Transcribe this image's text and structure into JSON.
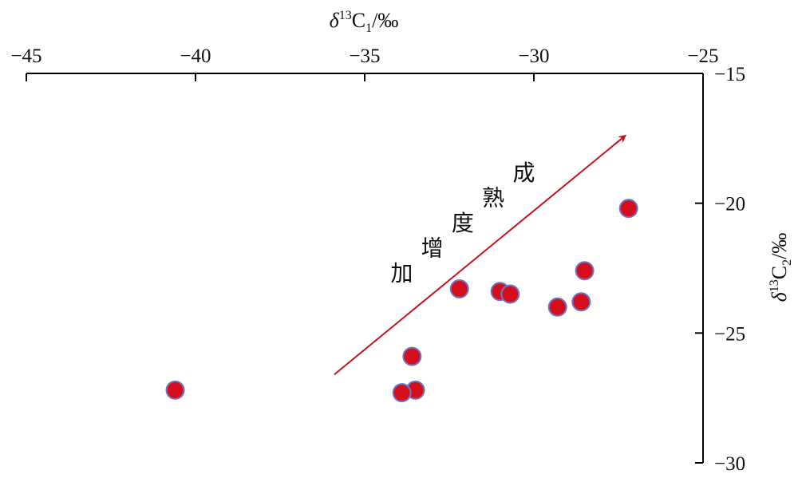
{
  "chart_data": {
    "type": "scatter",
    "x_axis": {
      "label_prefix": "δ",
      "label_sup": "13",
      "label_main": "C",
      "label_sub": "1",
      "label_suffix": "/‰",
      "position": "top",
      "range": [
        -45,
        -25
      ],
      "ticks": [
        -45,
        -40,
        -35,
        -30,
        -25
      ],
      "tick_labels": [
        "−45",
        "−40",
        "−35",
        "−30",
        "−25"
      ]
    },
    "y_axis": {
      "label_prefix": "δ",
      "label_sup": "13",
      "label_main": "C",
      "label_sub": "2",
      "label_suffix": "/‰",
      "position": "right",
      "range": [
        -30,
        -15
      ],
      "ticks": [
        -15,
        -20,
        -25,
        -30
      ],
      "tick_labels": [
        "−15",
        "−20",
        "−25",
        "−30"
      ]
    },
    "points": [
      {
        "x": -40.6,
        "y": -27.2
      },
      {
        "x": -33.6,
        "y": -25.9
      },
      {
        "x": -33.5,
        "y": -27.2
      },
      {
        "x": -33.9,
        "y": -27.3
      },
      {
        "x": -32.2,
        "y": -23.3
      },
      {
        "x": -31.0,
        "y": -23.4
      },
      {
        "x": -30.7,
        "y": -23.5
      },
      {
        "x": -29.3,
        "y": -24.0
      },
      {
        "x": -28.6,
        "y": -23.8
      },
      {
        "x": -28.5,
        "y": -22.6
      },
      {
        "x": -27.2,
        "y": -20.2
      }
    ],
    "marker_color": "#d40e1c",
    "marker_edge_color": "#6b78c8",
    "arrow": {
      "start": {
        "x": -35.9,
        "y": -26.6
      },
      "end": {
        "x": -27.3,
        "y": -17.4
      },
      "color": "#c8101e"
    },
    "annotation": {
      "chars": [
        "加",
        "增",
        "度",
        "熟",
        "成"
      ],
      "text": "加增度熟成"
    },
    "grid": false,
    "legend": "none"
  }
}
